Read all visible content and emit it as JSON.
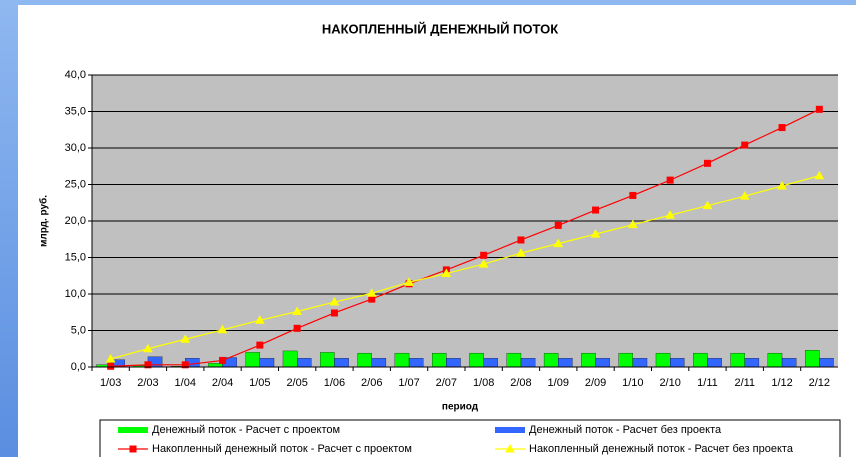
{
  "chart_data": {
    "type": "bar",
    "title": "НАКОПЛЕННЫЙ ДЕНЕЖНЫЙ ПОТОК",
    "y_label": "млрд. руб.",
    "x_label": "период",
    "categories": [
      "1/03",
      "2/03",
      "1/04",
      "2/04",
      "1/05",
      "2/05",
      "1/06",
      "2/06",
      "1/07",
      "2/07",
      "1/08",
      "2/08",
      "1/09",
      "2/09",
      "1/10",
      "2/10",
      "1/11",
      "2/11",
      "1/12",
      "2/12"
    ],
    "series": [
      {
        "name": "Денежный поток - Расчет с проектом",
        "type": "bar",
        "color": "#00ff00",
        "values": [
          0.3,
          0.2,
          0.1,
          0.5,
          2.0,
          2.2,
          2.0,
          1.9,
          1.9,
          1.9,
          1.9,
          1.9,
          1.9,
          1.9,
          1.9,
          1.9,
          1.9,
          1.9,
          1.9,
          2.3
        ]
      },
      {
        "name": "Денежный поток - Расчет без проекта",
        "type": "bar",
        "color": "#3366ff",
        "values": [
          1.0,
          1.4,
          1.2,
          1.3,
          1.2,
          1.2,
          1.2,
          1.2,
          1.2,
          1.2,
          1.2,
          1.2,
          1.2,
          1.2,
          1.2,
          1.2,
          1.2,
          1.2,
          1.2,
          1.2
        ]
      },
      {
        "name": "Накопленный денежный поток - Расчет с проектом",
        "type": "line",
        "marker": "square",
        "color": "#ff0000",
        "values": [
          0.1,
          0.3,
          0.3,
          0.9,
          3.0,
          5.3,
          7.4,
          9.3,
          11.4,
          13.3,
          15.3,
          17.4,
          19.4,
          21.5,
          23.5,
          25.6,
          27.9,
          30.4,
          32.8,
          35.3
        ]
      },
      {
        "name": "Накопленный денежный поток - Расчет без проекта",
        "type": "line",
        "marker": "triangle",
        "color": "#ffff00",
        "values": [
          1.1,
          2.5,
          3.8,
          5.1,
          6.4,
          7.6,
          8.9,
          10.1,
          11.6,
          12.8,
          14.1,
          15.6,
          16.9,
          18.2,
          19.5,
          20.8,
          22.1,
          23.4,
          24.8,
          26.2
        ]
      }
    ],
    "ylim": [
      0,
      40
    ],
    "yticks": [
      {
        "value": 0,
        "label": "0,0"
      },
      {
        "value": 5,
        "label": "5,0"
      },
      {
        "value": 10,
        "label": "10,0"
      },
      {
        "value": 15,
        "label": "15,0"
      },
      {
        "value": 20,
        "label": "20,0"
      },
      {
        "value": 25,
        "label": "25,0"
      },
      {
        "value": 30,
        "label": "30,0"
      },
      {
        "value": 35,
        "label": "35,0"
      },
      {
        "value": 40,
        "label": "40,0"
      }
    ],
    "grid": true,
    "legend": "bottom"
  }
}
